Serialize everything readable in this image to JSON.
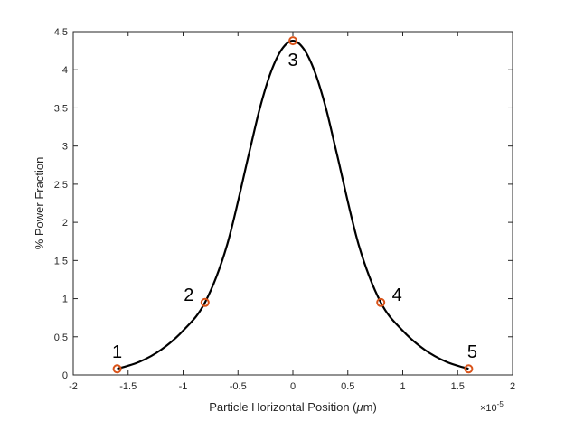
{
  "chart_data": {
    "type": "line",
    "xlabel_prefix": "Particle Horizontal Position (",
    "xlabel_mu": "μ",
    "xlabel_suffix": "m)",
    "ylabel": "% Power Fraction",
    "x_exponent_base": "×10",
    "x_exponent_power": "-5",
    "xlim": [
      -2,
      2
    ],
    "ylim": [
      0,
      4.5
    ],
    "x_ticks": [
      -2,
      -1.5,
      -1,
      -0.5,
      0,
      0.5,
      1,
      1.5,
      2
    ],
    "x_tick_labels": [
      "-2",
      "-1.5",
      "-1",
      "-0.5",
      "0",
      "0.5",
      "1",
      "1.5",
      "2"
    ],
    "y_ticks": [
      0,
      0.5,
      1,
      1.5,
      2,
      2.5,
      3,
      3.5,
      4,
      4.5
    ],
    "y_tick_labels": [
      "0",
      "0.5",
      "1",
      "1.5",
      "2",
      "2.5",
      "3",
      "3.5",
      "4",
      "4.5"
    ],
    "grid": false,
    "series": [
      {
        "x": [
          -1.6,
          -1.4,
          -1.2,
          -1.0,
          -0.8,
          -0.6,
          -0.4,
          -0.3,
          -0.2,
          -0.1,
          0,
          0.1,
          0.2,
          0.3,
          0.4,
          0.6,
          0.8,
          1.0,
          1.2,
          1.4,
          1.6
        ],
        "y": [
          0.08,
          0.17,
          0.33,
          0.58,
          0.95,
          1.7,
          2.9,
          3.5,
          3.97,
          4.27,
          4.38,
          4.27,
          3.97,
          3.5,
          2.9,
          1.7,
          0.95,
          0.58,
          0.33,
          0.17,
          0.08
        ]
      }
    ],
    "markers": [
      {
        "label": "1",
        "x": -1.6,
        "y": 0.08
      },
      {
        "label": "2",
        "x": -0.8,
        "y": 0.95
      },
      {
        "label": "3",
        "x": 0,
        "y": 4.38
      },
      {
        "label": "4",
        "x": 0.8,
        "y": 0.95
      },
      {
        "label": "5",
        "x": 1.6,
        "y": 0.08
      }
    ],
    "colors": {
      "line": "#000000",
      "marker": "#d95319",
      "axis": "#262626"
    }
  }
}
